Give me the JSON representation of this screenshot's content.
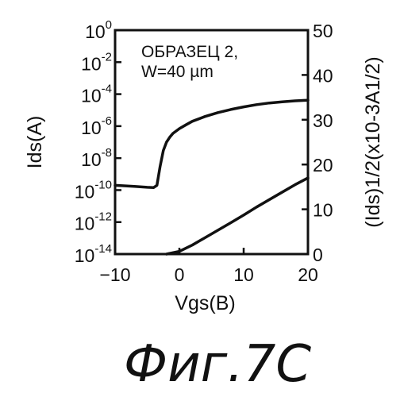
{
  "chart_data": {
    "type": "line",
    "x_label": "Vgs",
    "x_unit": "В",
    "x_ticks": [
      -10,
      0,
      10,
      20
    ],
    "xlim": [
      -10,
      20
    ],
    "y_left": {
      "label": "Ids(A)",
      "scale": "log",
      "ylim": [
        1e-14,
        1
      ],
      "tick_exponents": [
        0,
        -2,
        -4,
        -6,
        -8,
        -10,
        -12,
        -14
      ]
    },
    "y_right": {
      "label": "(Ids)1/2(x10-3A1/2)",
      "scale": "linear",
      "ylim": [
        0,
        50
      ],
      "ticks": [
        0,
        10,
        20,
        30,
        40,
        50
      ]
    },
    "annotation_lines": [
      "ОБРАЗЕЦ 2,",
      "W=40 µm"
    ],
    "series": [
      {
        "axis": "left",
        "x": [
          -10,
          -7,
          -5,
          -4,
          -3.5,
          -3,
          -2.5,
          -2,
          -1.5,
          -1,
          0,
          1,
          2,
          4,
          6,
          8,
          10,
          12,
          14,
          16,
          18,
          20
        ],
        "y": [
          2e-10,
          1.7e-10,
          1.5e-10,
          1.45e-10,
          2e-10,
          3e-09,
          3e-08,
          1e-07,
          2e-07,
          3.5e-07,
          7e-07,
          1.2e-06,
          2e-06,
          4e-06,
          7e-06,
          1.1e-05,
          1.6e-05,
          2.2e-05,
          2.8e-05,
          3.3e-05,
          3.8e-05,
          4.2e-05
        ]
      },
      {
        "axis": "right",
        "x": [
          -2,
          0,
          2,
          5,
          8,
          10,
          12,
          15,
          18,
          20
        ],
        "y": [
          0,
          0.6,
          2,
          4.5,
          7,
          8.7,
          10.5,
          13,
          15.5,
          17
        ]
      }
    ]
  },
  "caption": "Фиг.7С"
}
